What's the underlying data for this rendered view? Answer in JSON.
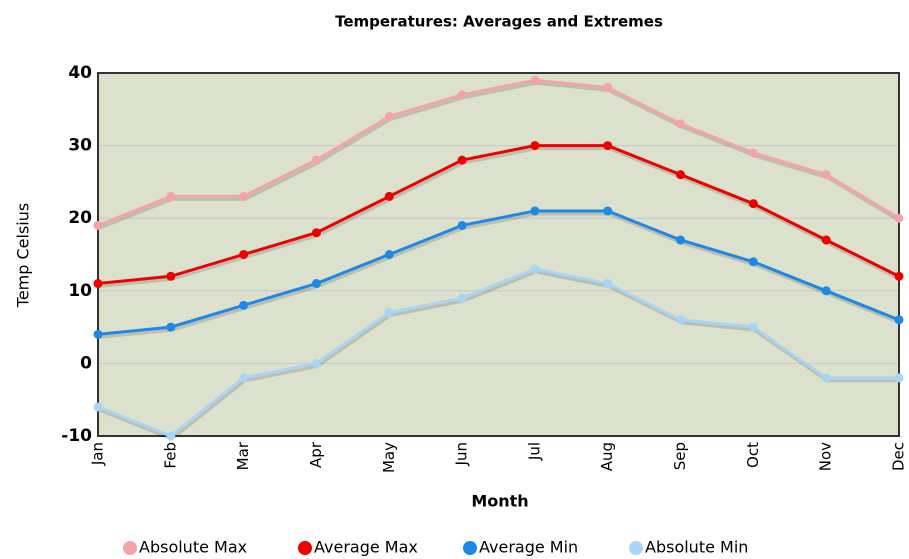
{
  "chart_data": {
    "type": "line",
    "title": "Temperatures: Averages and Extremes",
    "x_label": "Month",
    "y_label": "Temp Celsius",
    "categories": [
      "Jan",
      "Feb",
      "Mar",
      "Apr",
      "May",
      "Jun",
      "Jul",
      "Aug",
      "Sep",
      "Oct",
      "Nov",
      "Dec"
    ],
    "series": [
      {
        "name": "Absolute Max",
        "color": "#f4a3a8",
        "values": [
          19,
          23,
          23,
          28,
          34,
          37,
          39,
          38,
          33,
          29,
          26,
          20
        ]
      },
      {
        "name": "Average Max",
        "color": "#ee0000",
        "values": [
          11,
          12,
          15,
          18,
          23,
          28,
          30,
          30,
          26,
          22,
          17,
          12
        ]
      },
      {
        "name": "Average Min",
        "color": "#1e88e5",
        "values": [
          4,
          5,
          8,
          11,
          15,
          19,
          21,
          21,
          17,
          14,
          10,
          6
        ]
      },
      {
        "name": "Absolute Min",
        "color": "#a8d4f5",
        "values": [
          -6,
          -10,
          -2,
          0,
          7,
          9,
          13,
          11,
          6,
          5,
          -2,
          -2
        ]
      }
    ],
    "ylim": [
      -10,
      40
    ],
    "yticks": [
      -10,
      0,
      10,
      20,
      30,
      40
    ],
    "grid": true,
    "legend": "bottom",
    "background": "#dce1cd"
  }
}
